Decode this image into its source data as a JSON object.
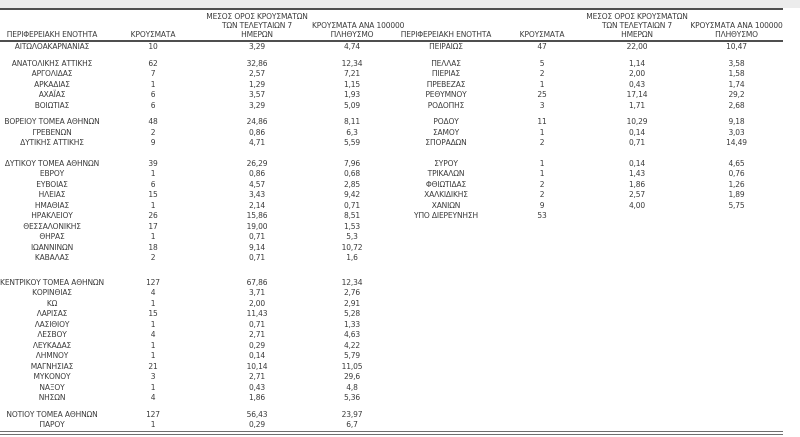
{
  "header": {
    "col_region": "ΠΕΡΙΦΕΡΕΙΑΚΗ ΕΝΟΤΗΤΑ",
    "col_cases": "ΚΡΟΥΣΜΑΤΑ",
    "col_avg_line1": "ΜΕΣΟΣ ΟΡΟΣ ΚΡΟΥΣΜΑΤΩΝ",
    "col_avg_line2": "ΤΩΝ ΤΕΛΕΥΤΑΙΩΝ 7",
    "col_avg_line3": "ΗΜΕΡΩΝ",
    "col_rate_line1": "ΚΡΟΥΣΜΑΤΑ ΑΝΑ 100000",
    "col_rate_line2": "ΠΛΗΘΥΣΜΟ"
  },
  "colors": {
    "border_dark": "#4f4f4f",
    "border_bottom": "#6f6f6f",
    "text": "#3b3b3b",
    "top_strip": "#ececec"
  },
  "table": {
    "rows": [
      {
        "type": "data",
        "left": [
          "ΑΙΤΩΛΟΑΚΑΡΝΑΝΙΑΣ",
          "10",
          "3,29",
          "4,74"
        ],
        "right": [
          "ΠΕΙΡΑΙΩΣ",
          "47",
          "22,00",
          "10,47"
        ]
      },
      {
        "type": "gap",
        "height": 6
      },
      {
        "type": "data",
        "left": [
          "ΑΝΑΤΟΛΙΚΗΣ ΑΤΤΙΚΗΣ",
          "62",
          "32,86",
          "12,34"
        ],
        "right": [
          "ΠΕΛΛΑΣ",
          "5",
          "1,14",
          "3,58"
        ]
      },
      {
        "type": "data",
        "left": [
          "ΑΡΓΟΛΙΔΑΣ",
          "7",
          "2,57",
          "7,21"
        ],
        "right": [
          "ΠΙΕΡΙΑΣ",
          "2",
          "2,00",
          "1,58"
        ]
      },
      {
        "type": "data",
        "left": [
          "ΑΡΚΑΔΙΑΣ",
          "1",
          "1,29",
          "1,15"
        ],
        "right": [
          "ΠΡΕΒΕΖΑΣ",
          "1",
          "0,43",
          "1,74"
        ]
      },
      {
        "type": "data",
        "left": [
          "ΑΧΑΪΑΣ",
          "6",
          "3,57",
          "1,93"
        ],
        "right": [
          "ΡΕΘΥΜΝΟΥ",
          "25",
          "17,14",
          "29,2"
        ]
      },
      {
        "type": "data",
        "left": [
          "ΒΟΙΩΤΙΑΣ",
          "6",
          "3,29",
          "5,09"
        ],
        "right": [
          "ΡΟΔΟΠΗΣ",
          "3",
          "1,71",
          "2,68"
        ]
      },
      {
        "type": "gap",
        "height": 6
      },
      {
        "type": "data",
        "left": [
          "ΒΟΡΕΙΟΥ ΤΟΜΕΑ ΑΘΗΝΩΝ",
          "48",
          "24,86",
          "8,11"
        ],
        "right": [
          "ΡΟΔΟΥ",
          "11",
          "10,29",
          "9,18"
        ]
      },
      {
        "type": "data",
        "left": [
          "ΓΡΕΒΕΝΩΝ",
          "2",
          "0,86",
          "6,3"
        ],
        "right": [
          "ΣΑΜΟΥ",
          "1",
          "0,14",
          "3,03"
        ]
      },
      {
        "type": "data",
        "left": [
          "ΔΥΤΙΚΗΣ ΑΤΤΙΚΗΣ",
          "9",
          "4,71",
          "5,59"
        ],
        "right": [
          "ΣΠΟΡΑΔΩΝ",
          "2",
          "0,71",
          "14,49"
        ]
      },
      {
        "type": "gap",
        "height": 10
      },
      {
        "type": "data",
        "left": [
          "ΔΥΤΙΚΟΥ ΤΟΜΕΑ ΑΘΗΝΩΝ",
          "39",
          "26,29",
          "7,96"
        ],
        "right": [
          "ΣΥΡΟΥ",
          "1",
          "0,14",
          "4,65"
        ]
      },
      {
        "type": "data",
        "left": [
          "ΕΒΡΟΥ",
          "1",
          "0,86",
          "0,68"
        ],
        "right": [
          "ΤΡΙΚΑΛΩΝ",
          "1",
          "1,43",
          "0,76"
        ]
      },
      {
        "type": "data",
        "left": [
          "ΕΥΒΟΙΑΣ",
          "6",
          "4,57",
          "2,85"
        ],
        "right": [
          "ΦΘΙΩΤΙΔΑΣ",
          "2",
          "1,86",
          "1,26"
        ]
      },
      {
        "type": "data",
        "left": [
          "ΗΛΕΙΑΣ",
          "15",
          "3,43",
          "9,42"
        ],
        "right": [
          "ΧΑΛΚΙΔΙΚΗΣ",
          "2",
          "2,57",
          "1,89"
        ]
      },
      {
        "type": "data",
        "left": [
          "ΗΜΑΘΙΑΣ",
          "1",
          "2,14",
          "0,71"
        ],
        "right": [
          "ΧΑΝΙΩΝ",
          "9",
          "4,00",
          "5,75"
        ]
      },
      {
        "type": "data",
        "left": [
          "ΗΡΑΚΛΕΙΟΥ",
          "26",
          "15,86",
          "8,51"
        ],
        "right": [
          "ΥΠΟ ΔΙΕΡΕΥΝΗΣΗ",
          "53",
          "",
          ""
        ]
      },
      {
        "type": "data",
        "left": [
          "ΘΕΣΣΑΛΟΝΙΚΗΣ",
          "17",
          "19,00",
          "1,53"
        ],
        "right": null
      },
      {
        "type": "data",
        "left": [
          "ΘΗΡΑΣ",
          "1",
          "0,71",
          "5,3"
        ],
        "right": null
      },
      {
        "type": "data",
        "left": [
          "ΙΩΑΝΝΙΝΩΝ",
          "18",
          "9,14",
          "10,72"
        ],
        "right": null
      },
      {
        "type": "data",
        "left": [
          "ΚΑΒΑΛΑΣ",
          "2",
          "0,71",
          "1,6"
        ],
        "right": null
      },
      {
        "type": "gap",
        "height": 14
      },
      {
        "type": "data",
        "left": [
          "ΚΕΝΤΡΙΚΟΥ ΤΟΜΕΑ ΑΘΗΝΩΝ",
          "127",
          "67,86",
          "12,34"
        ],
        "right": null
      },
      {
        "type": "data",
        "left": [
          "ΚΟΡΙΝΘΙΑΣ",
          "4",
          "3,71",
          "2,76"
        ],
        "right": null
      },
      {
        "type": "data",
        "left": [
          "ΚΩ",
          "1",
          "2,00",
          "2,91"
        ],
        "right": null
      },
      {
        "type": "data",
        "left": [
          "ΛΑΡΙΣΑΣ",
          "15",
          "11,43",
          "5,28"
        ],
        "right": null
      },
      {
        "type": "data",
        "left": [
          "ΛΑΣΙΘΙΟΥ",
          "1",
          "0,71",
          "1,33"
        ],
        "right": null
      },
      {
        "type": "data",
        "left": [
          "ΛΕΣΒΟΥ",
          "4",
          "2,71",
          "4,63"
        ],
        "right": null
      },
      {
        "type": "data",
        "left": [
          "ΛΕΥΚΑΔΑΣ",
          "1",
          "0,29",
          "4,22"
        ],
        "right": null
      },
      {
        "type": "data",
        "left": [
          "ΛΗΜΝΟΥ",
          "1",
          "0,14",
          "5,79"
        ],
        "right": null
      },
      {
        "type": "data",
        "left": [
          "ΜΑΓΝΗΣΙΑΣ",
          "21",
          "10,14",
          "11,05"
        ],
        "right": null
      },
      {
        "type": "data",
        "left": [
          "ΜΥΚΟΝΟΥ",
          "3",
          "2,71",
          "29,6"
        ],
        "right": null
      },
      {
        "type": "data",
        "left": [
          "ΝΑΞΟΥ",
          "1",
          "0,43",
          "4,8"
        ],
        "right": null
      },
      {
        "type": "data",
        "left": [
          "ΝΗΣΩΝ",
          "4",
          "1,86",
          "5,36"
        ],
        "right": null
      },
      {
        "type": "gap",
        "height": 6
      },
      {
        "type": "data",
        "left": [
          "ΝΟΤΙΟΥ ΤΟΜΕΑ ΑΘΗΝΩΝ",
          "127",
          "56,43",
          "23,97"
        ],
        "right": null
      },
      {
        "type": "data",
        "left": [
          "ΠΑΡΟΥ",
          "1",
          "0,29",
          "6,7"
        ],
        "right": null
      }
    ]
  }
}
